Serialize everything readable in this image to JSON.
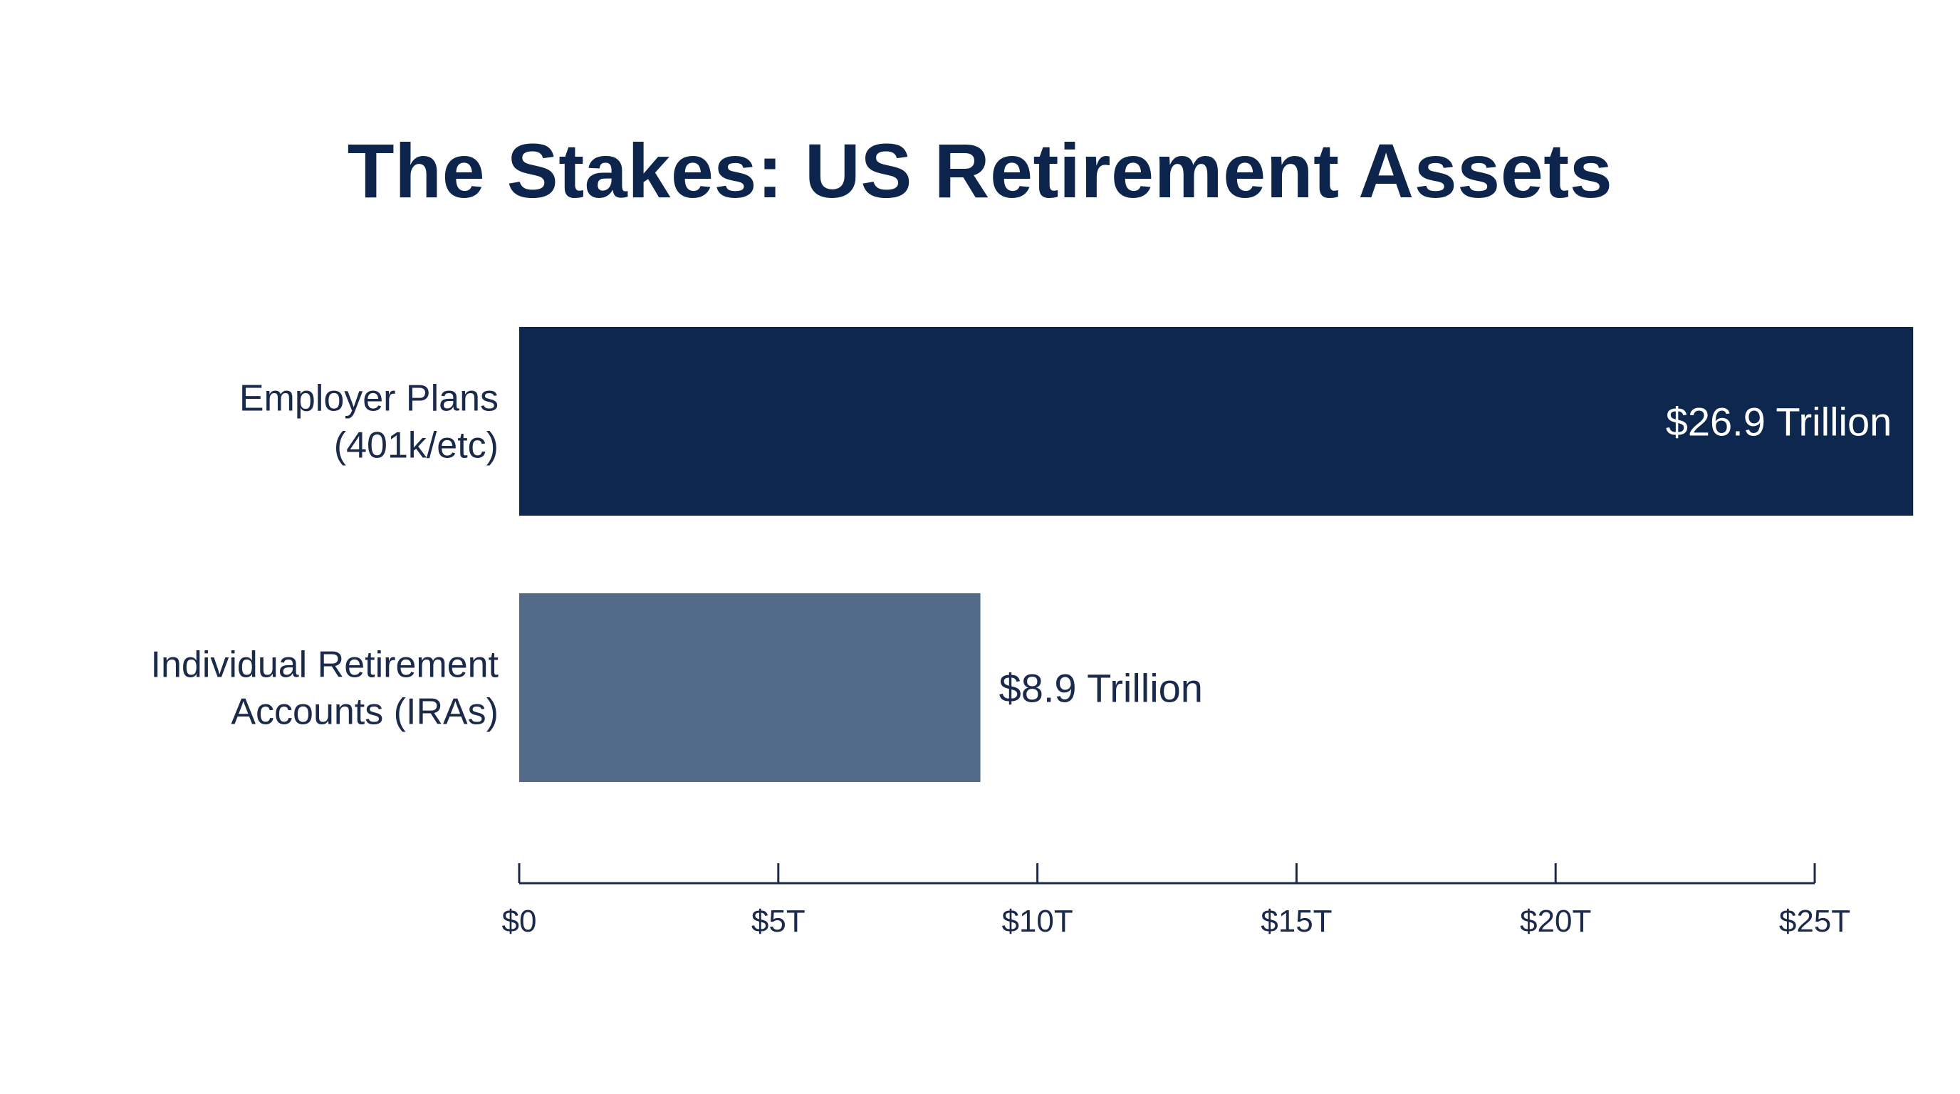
{
  "colors": {
    "title": "#0d254d",
    "axis": "#1b2a4a",
    "text": "#1b2a4a"
  },
  "chart_data": {
    "type": "bar",
    "orientation": "horizontal",
    "title": "The Stakes: US Retirement Assets",
    "xlabel": "",
    "ylabel": "",
    "categories": [
      [
        "Employer Plans",
        "(401k/etc)"
      ],
      [
        "Individual Retirement",
        "Accounts (IRAs)"
      ]
    ],
    "values": [
      26.9,
      8.9
    ],
    "value_labels": [
      "$26.9 Trillion",
      "$8.9 Trillion"
    ],
    "bar_colors": [
      "#0d274e",
      "#536b89"
    ],
    "value_label_colors": [
      "#ffffff",
      "#1b2a4a"
    ],
    "value_label_position": [
      "inside-end",
      "outside-end"
    ],
    "xlim": [
      0,
      25
    ],
    "xticks": [
      0,
      5,
      10,
      15,
      20,
      25
    ],
    "xtick_labels": [
      "$0",
      "$5T",
      "$10T",
      "$15T",
      "$20T",
      "$25T"
    ],
    "grid": false,
    "legend": "none"
  }
}
